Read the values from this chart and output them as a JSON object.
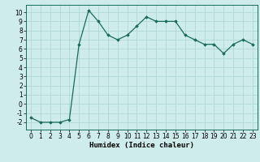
{
  "x": [
    0,
    1,
    2,
    3,
    4,
    5,
    6,
    7,
    8,
    9,
    10,
    11,
    12,
    13,
    14,
    15,
    16,
    17,
    18,
    19,
    20,
    21,
    22,
    23
  ],
  "y": [
    -1.5,
    -2.0,
    -2.0,
    -2.0,
    -1.7,
    6.5,
    10.2,
    9.0,
    7.5,
    7.0,
    7.5,
    8.5,
    9.5,
    9.0,
    9.0,
    9.0,
    7.5,
    7.0,
    6.5,
    6.5,
    5.5,
    6.5,
    7.0,
    6.5
  ],
  "line_color": "#1a6b5a",
  "marker": "D",
  "marker_size": 1.8,
  "bg_color": "#ceecea",
  "grid_color": "#b0d8d4",
  "xlabel": "Humidex (Indice chaleur)",
  "xlim": [
    -0.5,
    23.5
  ],
  "ylim": [
    -2.8,
    10.8
  ],
  "yticks": [
    -2,
    -1,
    0,
    1,
    2,
    3,
    4,
    5,
    6,
    7,
    8,
    9,
    10
  ],
  "xticks": [
    0,
    1,
    2,
    3,
    4,
    5,
    6,
    7,
    8,
    9,
    10,
    11,
    12,
    13,
    14,
    15,
    16,
    17,
    18,
    19,
    20,
    21,
    22,
    23
  ],
  "xlabel_fontsize": 6.5,
  "tick_fontsize": 5.5,
  "line_width": 0.9
}
